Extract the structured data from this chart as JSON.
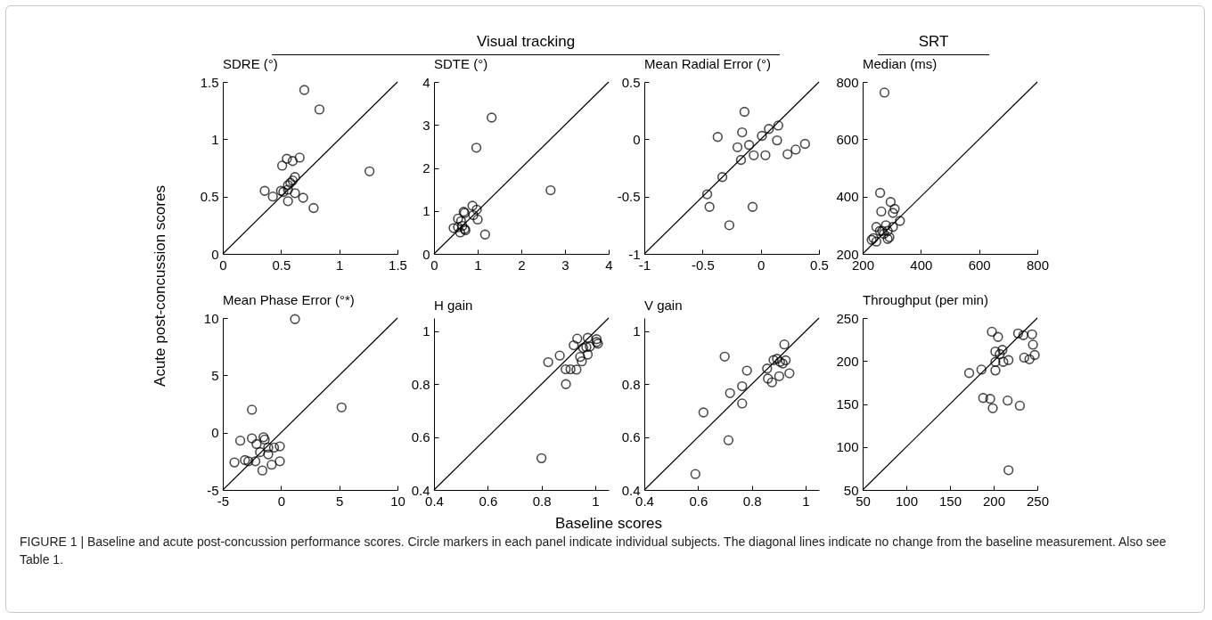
{
  "chart_data": [
    {
      "type": "scatter",
      "title": "SDRE (°)",
      "ylabel": "Acute post-concussion scores",
      "xlim": [
        0,
        1.5
      ],
      "ylim": [
        0,
        1.5
      ],
      "xticks": [
        0,
        0.5,
        1,
        1.5
      ],
      "yticks": [
        0,
        0.5,
        1,
        1.5
      ],
      "marker": "circle",
      "grid": false,
      "series": [
        {
          "type": "scatter",
          "color": "#000000",
          "x": [
            0.7,
            0.83,
            1.26,
            0.55,
            0.6,
            0.66,
            0.51,
            0.36,
            0.43,
            0.5,
            0.52,
            0.56,
            0.58,
            0.6,
            0.62,
            0.56,
            0.62,
            0.69,
            0.56,
            0.78
          ],
          "values": [
            1.43,
            1.26,
            0.72,
            0.83,
            0.81,
            0.84,
            0.77,
            0.55,
            0.5,
            0.55,
            0.54,
            0.6,
            0.62,
            0.64,
            0.67,
            0.56,
            0.53,
            0.49,
            0.46,
            0.4
          ]
        },
        {
          "type": "line",
          "marker": "none",
          "color": "#000000",
          "x": [
            0,
            1.5
          ],
          "values": [
            0,
            1.5
          ]
        }
      ]
    },
    {
      "type": "scatter",
      "title": "SDTE (°)",
      "annotations": [
        "Visual tracking"
      ],
      "xlim": [
        0,
        4
      ],
      "ylim": [
        0,
        4
      ],
      "xticks": [
        0,
        1,
        2,
        3,
        4
      ],
      "yticks": [
        0,
        1,
        2,
        3,
        4
      ],
      "marker": "circle",
      "grid": false,
      "series": [
        {
          "type": "scatter",
          "color": "#000000",
          "x": [
            1.32,
            0.97,
            2.67,
            0.88,
            0.98,
            0.68,
            0.7,
            0.55,
            0.62,
            1.0,
            0.45,
            0.55,
            0.65,
            0.7,
            0.6,
            0.72,
            1.17,
            0.9
          ],
          "values": [
            3.17,
            2.47,
            1.48,
            1.12,
            1.03,
            0.98,
            0.95,
            0.82,
            0.76,
            0.8,
            0.6,
            0.62,
            0.65,
            0.58,
            0.5,
            0.55,
            0.45,
            0.9
          ]
        },
        {
          "type": "line",
          "marker": "none",
          "color": "#000000",
          "x": [
            0,
            4
          ],
          "values": [
            0,
            4
          ]
        }
      ]
    },
    {
      "type": "scatter",
      "title": "Mean Radial Error (°)",
      "xlim": [
        -1,
        0.5
      ],
      "ylim": [
        -1,
        0.5
      ],
      "xticks": [
        -1,
        -0.5,
        0,
        0.5
      ],
      "yticks": [
        -1,
        -0.5,
        0,
        0.5
      ],
      "marker": "circle",
      "grid": false,
      "series": [
        {
          "type": "scatter",
          "color": "#000000",
          "x": [
            -0.14,
            -0.37,
            -0.16,
            -0.2,
            -0.1,
            -0.17,
            -0.06,
            0.01,
            0.07,
            0.15,
            0.14,
            0.04,
            0.23,
            0.3,
            0.38,
            -0.33,
            -0.46,
            -0.44,
            -0.07,
            -0.27
          ],
          "values": [
            0.24,
            0.02,
            0.06,
            -0.07,
            -0.05,
            -0.18,
            -0.14,
            0.03,
            0.09,
            0.12,
            -0.01,
            -0.14,
            -0.13,
            -0.09,
            -0.04,
            -0.33,
            -0.48,
            -0.59,
            -0.59,
            -0.75
          ]
        },
        {
          "type": "line",
          "marker": "none",
          "color": "#000000",
          "x": [
            -1,
            0.5
          ],
          "values": [
            -1,
            0.5
          ]
        }
      ]
    },
    {
      "type": "scatter",
      "title": "Median (ms)",
      "annotations": [
        "SRT"
      ],
      "xlim": [
        200,
        800
      ],
      "ylim": [
        200,
        800
      ],
      "xticks": [
        200,
        400,
        600,
        800
      ],
      "yticks": [
        200,
        400,
        600,
        800
      ],
      "marker": "circle",
      "grid": false,
      "series": [
        {
          "type": "scatter",
          "color": "#000000",
          "x": [
            275,
            260,
            264,
            296,
            310,
            304,
            328,
            247,
            280,
            304,
            237,
            231,
            247,
            267,
            286,
            292,
            286,
            259,
            273
          ],
          "values": [
            763,
            413,
            348,
            381,
            357,
            343,
            315,
            294,
            300,
            294,
            255,
            249,
            243,
            280,
            280,
            258,
            252,
            280,
            270
          ]
        },
        {
          "type": "line",
          "marker": "none",
          "color": "#000000",
          "x": [
            200,
            800
          ],
          "values": [
            200,
            800
          ]
        }
      ]
    },
    {
      "type": "scatter",
      "title": "Mean Phase Error (°*)",
      "xlim": [
        -5,
        10
      ],
      "ylim": [
        -5,
        10
      ],
      "xticks": [
        -5,
        0,
        5,
        10
      ],
      "yticks": [
        -5,
        0,
        5,
        10
      ],
      "marker": "circle",
      "grid": false,
      "series": [
        {
          "type": "scatter",
          "color": "#000000",
          "x": [
            1.2,
            -2.5,
            5.2,
            -3.5,
            -2.5,
            -1.5,
            -1.4,
            -2.1,
            -1.8,
            -1.1,
            -0.6,
            -0.1,
            -1.1,
            -4.0,
            -3.1,
            -2.8,
            -2.2,
            -0.8,
            -0.1,
            -1.6
          ],
          "values": [
            9.9,
            2.0,
            2.2,
            -0.7,
            -0.5,
            -0.4,
            -0.6,
            -1.0,
            -1.7,
            -1.3,
            -1.3,
            -1.2,
            -1.9,
            -2.6,
            -2.4,
            -2.5,
            -2.5,
            -2.8,
            -2.5,
            -3.3
          ]
        },
        {
          "type": "line",
          "marker": "none",
          "color": "#000000",
          "x": [
            -5,
            10
          ],
          "values": [
            -5,
            10
          ]
        }
      ]
    },
    {
      "type": "scatter",
      "title": "H gain",
      "xlabel": "Baseline scores",
      "xlim": [
        0.4,
        1.05
      ],
      "ylim": [
        0.4,
        1.05
      ],
      "xticks": [
        0.4,
        0.6,
        0.8,
        1
      ],
      "yticks": [
        0.4,
        0.6,
        0.8,
        1
      ],
      "marker": "circle",
      "grid": false,
      "series": [
        {
          "type": "scatter",
          "color": "#000000",
          "x": [
            0.8,
            0.825,
            0.868,
            0.891,
            0.89,
            0.908,
            0.93,
            0.92,
            0.933,
            0.972,
            0.944,
            0.95,
            0.972,
            0.967,
            0.98,
            1.005,
            1.005,
            1.01,
            0.955
          ],
          "values": [
            0.52,
            0.883,
            0.908,
            0.8,
            0.856,
            0.856,
            0.855,
            0.947,
            0.972,
            0.975,
            0.903,
            0.886,
            0.912,
            0.94,
            0.942,
            0.97,
            0.959,
            0.953,
            0.937
          ]
        },
        {
          "type": "line",
          "marker": "none",
          "color": "#000000",
          "x": [
            0.4,
            1.05
          ],
          "values": [
            0.4,
            1.05
          ]
        }
      ]
    },
    {
      "type": "scatter",
      "title": "V gain",
      "xlim": [
        0.4,
        1.05
      ],
      "ylim": [
        0.4,
        1.05
      ],
      "xticks": [
        0.4,
        0.6,
        0.8,
        1
      ],
      "yticks": [
        0.4,
        0.6,
        0.8,
        1
      ],
      "marker": "circle",
      "grid": false,
      "series": [
        {
          "type": "scatter",
          "color": "#000000",
          "x": [
            0.59,
            0.62,
            0.713,
            0.699,
            0.719,
            0.764,
            0.764,
            0.782,
            0.857,
            0.86,
            0.875,
            0.881,
            0.894,
            0.902,
            0.921,
            0.915,
            0.926,
            0.94,
            0.905
          ],
          "values": [
            0.46,
            0.693,
            0.588,
            0.904,
            0.766,
            0.792,
            0.727,
            0.851,
            0.859,
            0.821,
            0.807,
            0.891,
            0.896,
            0.83,
            0.95,
            0.878,
            0.89,
            0.841,
            0.884
          ]
        },
        {
          "type": "line",
          "marker": "none",
          "color": "#000000",
          "x": [
            0.4,
            1.05
          ],
          "values": [
            0.4,
            1.05
          ]
        }
      ]
    },
    {
      "type": "scatter",
      "title": "Throughput (per min)",
      "annotations": [
        "FIGURE 1 | Baseline and acute post-concussion performance scores. Circle markers in each panel indicate individual subjects. The diagonal lines indicate no change from the baseline measurement. Also see Table 1."
      ],
      "xlim": [
        50,
        250
      ],
      "ylim": [
        50,
        250
      ],
      "xticks": [
        50,
        100,
        150,
        200,
        250
      ],
      "yticks": [
        50,
        100,
        150,
        200,
        250
      ],
      "marker": "circle",
      "grid": false,
      "series": [
        {
          "type": "scatter",
          "color": "#000000",
          "x": [
            198,
            205,
            228,
            234,
            244,
            245,
            247,
            241,
            235,
            202,
            210,
            207,
            211,
            217,
            202,
            202,
            186,
            172,
            188,
            196,
            199,
            216,
            230,
            217
          ],
          "values": [
            234,
            228,
            232,
            230,
            231,
            219,
            207,
            202,
            204,
            211,
            213,
            208,
            199,
            201,
            199,
            189,
            190,
            186,
            157,
            156,
            145,
            154,
            148,
            73
          ]
        },
        {
          "type": "line",
          "marker": "none",
          "color": "#000000",
          "x": [
            50,
            250
          ],
          "values": [
            50,
            250
          ]
        }
      ]
    }
  ]
}
